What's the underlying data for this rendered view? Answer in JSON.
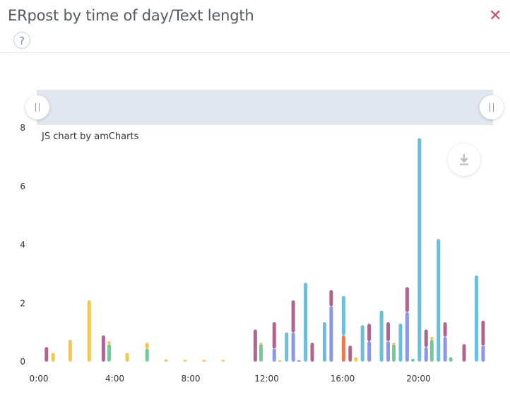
{
  "header": {
    "title": "ERpost by time of day/Text length",
    "help_glyph": "?",
    "close_glyph": "✕"
  },
  "chart_credit": "JS chart by amCharts",
  "icons": [
    "help-icon",
    "close-icon",
    "download-icon",
    "scrollbar-grip-icon"
  ],
  "colors": {
    "teal": "#6bbfdc",
    "plum": "#b2648e",
    "blue": "#8b96ee",
    "yellow": "#f3c94d",
    "green": "#72c99c",
    "orange": "#e97a4e",
    "scrollbar": "#e2e6f0",
    "close": "#d64561"
  },
  "chart_data": {
    "type": "bar",
    "stacked": true,
    "x_unit": "hour of day",
    "xlim": [
      0,
      24
    ],
    "ylim": [
      0,
      8
    ],
    "yticks": [
      0,
      2,
      4,
      6,
      8
    ],
    "xticks": [
      "0:00",
      "4:00",
      "8:00",
      "12:00",
      "16:00",
      "20:00"
    ],
    "xtick_hours": [
      0,
      4,
      8,
      12,
      16,
      20
    ],
    "grid": false,
    "legend": "none",
    "bars": [
      {
        "hour": 0.4,
        "segments": [
          {
            "color": "plum",
            "value": 0.5
          }
        ]
      },
      {
        "hour": 0.75,
        "segments": [
          {
            "color": "yellow",
            "value": 0.3
          }
        ]
      },
      {
        "hour": 1.65,
        "segments": [
          {
            "color": "yellow",
            "value": 0.75
          }
        ]
      },
      {
        "hour": 2.65,
        "segments": [
          {
            "color": "yellow",
            "value": 2.1
          }
        ]
      },
      {
        "hour": 3.4,
        "segments": [
          {
            "color": "plum",
            "value": 0.9
          }
        ]
      },
      {
        "hour": 3.7,
        "segments": [
          {
            "color": "green",
            "value": 0.6
          },
          {
            "color": "yellow",
            "value": 0.1
          }
        ]
      },
      {
        "hour": 4.65,
        "segments": [
          {
            "color": "yellow",
            "value": 0.3
          }
        ]
      },
      {
        "hour": 5.7,
        "segments": [
          {
            "color": "green",
            "value": 0.45
          },
          {
            "color": "yellow",
            "value": 0.2
          }
        ]
      },
      {
        "hour": 6.7,
        "segments": [
          {
            "color": "yellow",
            "value": 0.08
          }
        ]
      },
      {
        "hour": 7.7,
        "segments": [
          {
            "color": "yellow",
            "value": 0.06
          }
        ]
      },
      {
        "hour": 8.7,
        "segments": [
          {
            "color": "yellow",
            "value": 0.06
          }
        ]
      },
      {
        "hour": 9.7,
        "segments": [
          {
            "color": "yellow",
            "value": 0.06
          }
        ]
      },
      {
        "hour": 11.4,
        "segments": [
          {
            "color": "plum",
            "value": 1.1
          }
        ]
      },
      {
        "hour": 11.7,
        "segments": [
          {
            "color": "green",
            "value": 0.6
          },
          {
            "color": "yellow",
            "value": 0.05
          }
        ]
      },
      {
        "hour": 12.4,
        "segments": [
          {
            "color": "blue",
            "value": 0.45
          },
          {
            "color": "plum",
            "value": 0.9
          }
        ]
      },
      {
        "hour": 12.7,
        "segments": [
          {
            "color": "yellow",
            "value": 0.05
          }
        ]
      },
      {
        "hour": 13.05,
        "segments": [
          {
            "color": "teal",
            "value": 1.0
          }
        ]
      },
      {
        "hour": 13.4,
        "segments": [
          {
            "color": "blue",
            "value": 1.0
          },
          {
            "color": "plum",
            "value": 1.1
          }
        ]
      },
      {
        "hour": 13.7,
        "segments": [
          {
            "color": "blue",
            "value": 0.05
          }
        ]
      },
      {
        "hour": 14.05,
        "segments": [
          {
            "color": "teal",
            "value": 2.7
          }
        ]
      },
      {
        "hour": 14.4,
        "segments": [
          {
            "color": "plum",
            "value": 0.65
          }
        ]
      },
      {
        "hour": 15.05,
        "segments": [
          {
            "color": "teal",
            "value": 1.35
          }
        ]
      },
      {
        "hour": 15.4,
        "segments": [
          {
            "color": "blue",
            "value": 1.9
          },
          {
            "color": "plum",
            "value": 0.55
          }
        ]
      },
      {
        "hour": 16.05,
        "segments": [
          {
            "color": "orange",
            "value": 0.9
          },
          {
            "color": "teal",
            "value": 1.35
          }
        ]
      },
      {
        "hour": 16.4,
        "segments": [
          {
            "color": "plum",
            "value": 0.55
          }
        ]
      },
      {
        "hour": 16.7,
        "segments": [
          {
            "color": "yellow",
            "value": 0.15
          }
        ]
      },
      {
        "hour": 17.05,
        "segments": [
          {
            "color": "teal",
            "value": 1.25
          }
        ]
      },
      {
        "hour": 17.4,
        "segments": [
          {
            "color": "blue",
            "value": 0.7
          },
          {
            "color": "plum",
            "value": 0.6
          }
        ]
      },
      {
        "hour": 18.05,
        "segments": [
          {
            "color": "teal",
            "value": 1.75
          }
        ]
      },
      {
        "hour": 18.4,
        "segments": [
          {
            "color": "blue",
            "value": 0.7
          },
          {
            "color": "plum",
            "value": 0.65
          }
        ]
      },
      {
        "hour": 18.7,
        "segments": [
          {
            "color": "green",
            "value": 0.6
          },
          {
            "color": "yellow",
            "value": 0.05
          }
        ]
      },
      {
        "hour": 19.05,
        "segments": [
          {
            "color": "teal",
            "value": 1.3
          }
        ]
      },
      {
        "hour": 19.4,
        "segments": [
          {
            "color": "blue",
            "value": 1.7
          },
          {
            "color": "plum",
            "value": 0.85
          }
        ]
      },
      {
        "hour": 19.7,
        "segments": [
          {
            "color": "green",
            "value": 0.1
          }
        ]
      },
      {
        "hour": 20.05,
        "segments": [
          {
            "color": "teal",
            "value": 7.65
          }
        ]
      },
      {
        "hour": 20.4,
        "segments": [
          {
            "color": "blue",
            "value": 0.5
          },
          {
            "color": "plum",
            "value": 0.6
          }
        ]
      },
      {
        "hour": 20.7,
        "segments": [
          {
            "color": "green",
            "value": 0.75
          },
          {
            "color": "yellow",
            "value": 0.1
          }
        ]
      },
      {
        "hour": 21.05,
        "segments": [
          {
            "color": "teal",
            "value": 4.2
          }
        ]
      },
      {
        "hour": 21.4,
        "segments": [
          {
            "color": "blue",
            "value": 0.85
          },
          {
            "color": "plum",
            "value": 0.5
          }
        ]
      },
      {
        "hour": 21.7,
        "segments": [
          {
            "color": "green",
            "value": 0.15
          }
        ]
      },
      {
        "hour": 22.4,
        "segments": [
          {
            "color": "plum",
            "value": 0.6
          }
        ]
      },
      {
        "hour": 23.05,
        "segments": [
          {
            "color": "teal",
            "value": 2.95
          }
        ]
      },
      {
        "hour": 23.4,
        "segments": [
          {
            "color": "blue",
            "value": 0.55
          },
          {
            "color": "plum",
            "value": 0.85
          }
        ]
      }
    ]
  }
}
